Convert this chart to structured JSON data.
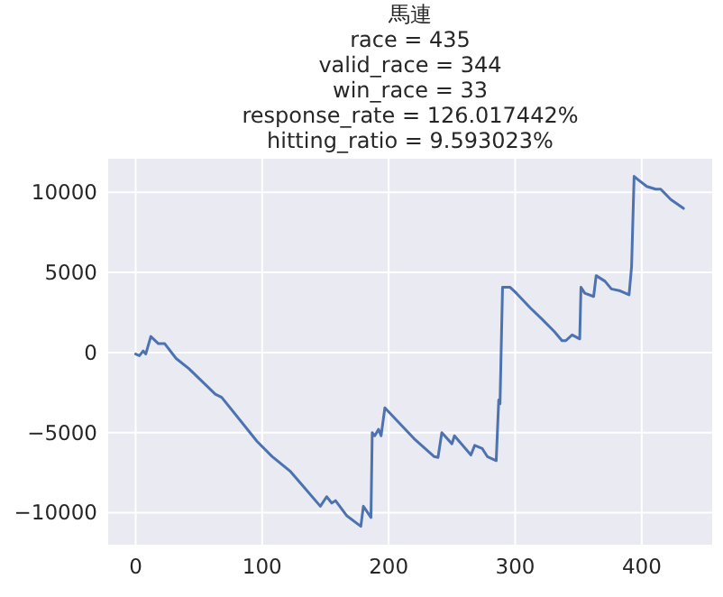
{
  "chart_data": {
    "type": "line",
    "title": "馬連\nrace = 435\nvalid_race = 344\nwin_race = 33\nresponse_rate = 126.017442%\nhitting_ratio = 9.593023%",
    "x": [
      0,
      3,
      6,
      8,
      12,
      18,
      23,
      32,
      42,
      63,
      68,
      96,
      108,
      122,
      134,
      146,
      151,
      155,
      158,
      167,
      178,
      180,
      186,
      187,
      189,
      192,
      194,
      197,
      220,
      236,
      239,
      242,
      250,
      252,
      265,
      268,
      274,
      278,
      285,
      287,
      288,
      290,
      296,
      301,
      312,
      321,
      331,
      337,
      340,
      345,
      351,
      352,
      355,
      362,
      364,
      371,
      376,
      383,
      390,
      392,
      394,
      397,
      404,
      411,
      415,
      423,
      433
    ],
    "series": [
      {
        "color": "#4c72b0",
        "values": [
          -100,
          -200,
          100,
          -100,
          1000,
          550,
          550,
          -370,
          -1000,
          -2600,
          -2800,
          -5550,
          -6500,
          -7400,
          -8500,
          -9600,
          -9000,
          -9400,
          -9250,
          -10200,
          -10850,
          -9600,
          -10300,
          -5000,
          -5200,
          -4800,
          -5200,
          -3450,
          -5370,
          -6500,
          -6550,
          -5000,
          -5700,
          -5200,
          -6400,
          -5800,
          -6000,
          -6500,
          -6750,
          -2960,
          -3200,
          4070,
          4070,
          3700,
          2780,
          2100,
          1300,
          740,
          740,
          1100,
          850,
          4070,
          3700,
          3500,
          4800,
          4450,
          3970,
          3850,
          3600,
          5370,
          11000,
          10800,
          10370,
          10200,
          10200,
          9550,
          9000
        ]
      }
    ],
    "xlim": [
      -21.7,
      455.7
    ],
    "ylim": [
      -12000,
      12100
    ],
    "xticks": [
      0,
      100,
      200,
      300,
      400
    ],
    "yticks": [
      -10000,
      -5000,
      0,
      5000,
      10000
    ],
    "grid": true,
    "line_style": "solid",
    "marker": "none"
  }
}
